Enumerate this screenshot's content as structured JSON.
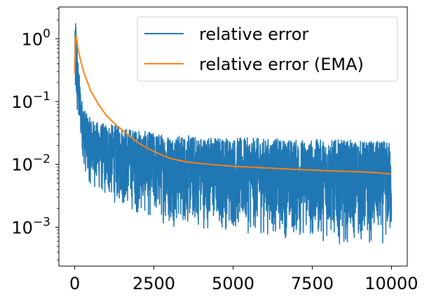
{
  "chart_data": {
    "type": "line",
    "title": "",
    "xlabel": "",
    "ylabel": "",
    "xscale": "linear",
    "yscale": "log",
    "xlim": [
      -500,
      10500
    ],
    "ylim": [
      0.00024,
      3.2
    ],
    "grid": false,
    "legend_position": "top-right",
    "xticks": [
      {
        "value": 0,
        "label": "0"
      },
      {
        "value": 2500,
        "label": "2500"
      },
      {
        "value": 5000,
        "label": "5000"
      },
      {
        "value": 7500,
        "label": "7500"
      },
      {
        "value": 10000,
        "label": "10000"
      }
    ],
    "yticks": [
      {
        "value": 0.001,
        "base": "10",
        "exp": "−3"
      },
      {
        "value": 0.01,
        "base": "10",
        "exp": "−2"
      },
      {
        "value": 0.1,
        "base": "10",
        "exp": "−1"
      },
      {
        "value": 1,
        "base": "10",
        "exp": "0"
      }
    ],
    "series": [
      {
        "name": "relative error",
        "color": "#1f77b4",
        "note_shape": "noisy",
        "x": [
          0,
          20,
          40,
          60,
          80,
          100,
          150,
          200,
          300,
          400,
          600,
          800,
          1000,
          1500,
          2000,
          2500,
          3000,
          4000,
          5000,
          6000,
          7000,
          8000,
          9000,
          10000
        ],
        "upper": [
          0.6,
          2.3,
          2.3,
          1.2,
          0.9,
          0.5,
          0.25,
          0.12,
          0.08,
          0.06,
          0.05,
          0.045,
          0.045,
          0.04,
          0.035,
          0.032,
          0.03,
          0.028,
          0.027,
          0.026,
          0.025,
          0.025,
          0.024,
          0.023
        ],
        "lower": [
          0.2,
          0.05,
          0.04,
          0.035,
          0.03,
          0.03,
          0.025,
          0.02,
          0.008,
          0.005,
          0.004,
          0.003,
          0.0025,
          0.002,
          0.0015,
          0.0012,
          0.001,
          0.0009,
          0.0008,
          0.0007,
          0.0006,
          0.00055,
          0.0005,
          0.0005
        ],
        "min_value": 0.00035
      },
      {
        "name": "relative error (EMA)",
        "color": "#ff7f0e",
        "x": [
          0,
          25,
          50,
          100,
          200,
          300,
          500,
          750,
          1000,
          1250,
          1500,
          2000,
          2500,
          3000,
          3500,
          4000,
          5000,
          6000,
          7000,
          8000,
          9000,
          9500,
          10000
        ],
        "y": [
          0.28,
          1.05,
          1.1,
          0.7,
          0.42,
          0.28,
          0.15,
          0.09,
          0.06,
          0.045,
          0.035,
          0.022,
          0.016,
          0.0125,
          0.011,
          0.0103,
          0.0093,
          0.0088,
          0.0083,
          0.0079,
          0.0076,
          0.0074,
          0.007
        ]
      }
    ]
  }
}
